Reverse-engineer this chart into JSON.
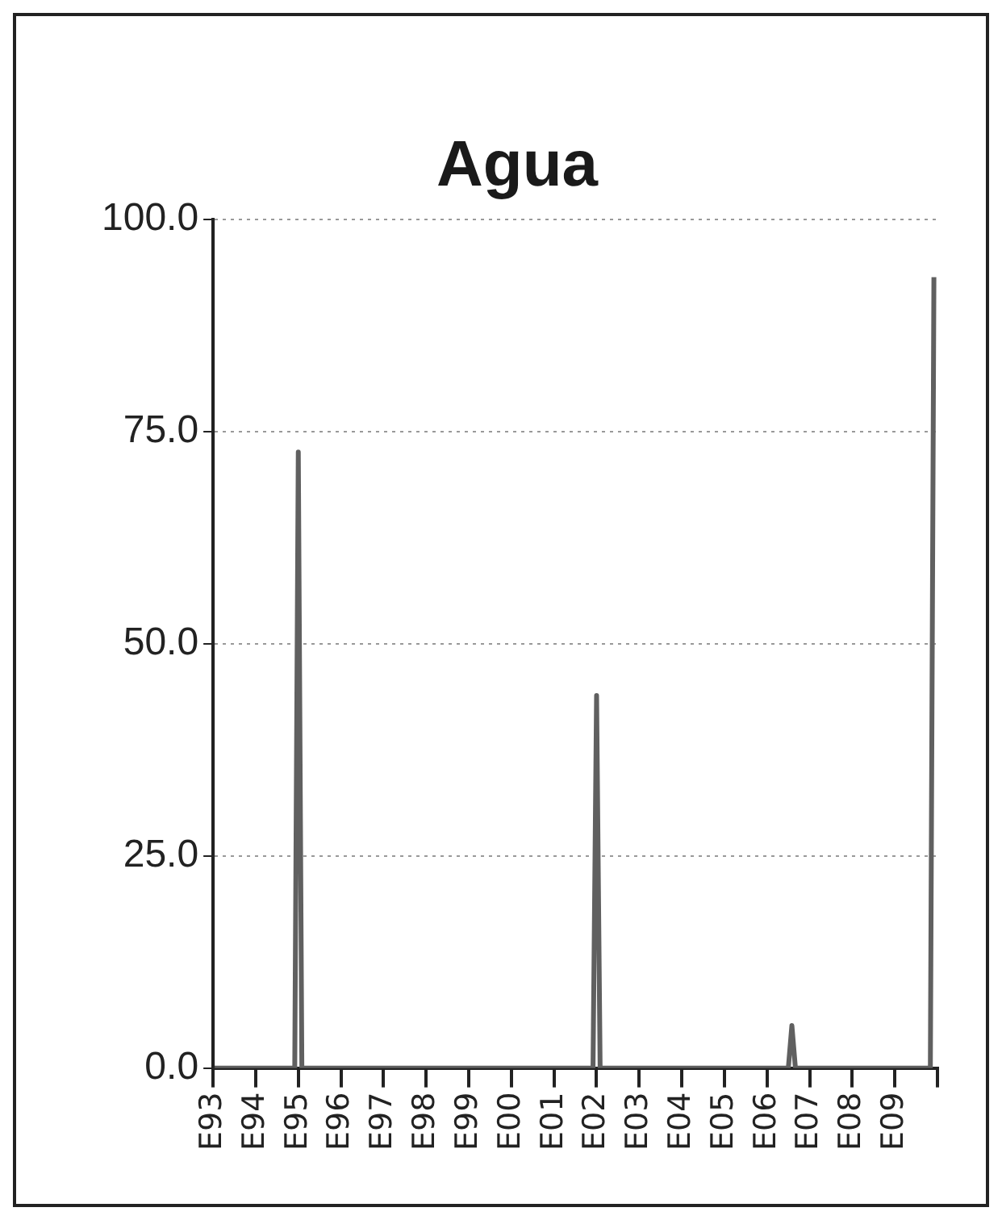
{
  "chart_data": {
    "type": "line",
    "title": "Agua",
    "x": [
      "1993-01",
      "1994-12",
      "1995-01",
      "1995-02",
      "2001-12",
      "2002-01",
      "2002-02",
      "2006-07",
      "2006-08",
      "2006-09",
      "2009-11",
      "2009-12"
    ],
    "series": [
      {
        "color": "#606060",
        "values": [
          0,
          0,
          72.6,
          0,
          0,
          43.9,
          0,
          0,
          5.0,
          0,
          0,
          93.2
        ]
      }
    ],
    "xlim": [
      "1993-01",
      "2010-01"
    ],
    "xticks": [
      {
        "value": "1993-01",
        "label": "E93"
      },
      {
        "value": "1994-01",
        "label": "E94"
      },
      {
        "value": "1995-01",
        "label": "E95"
      },
      {
        "value": "1996-01",
        "label": "E96"
      },
      {
        "value": "1997-01",
        "label": "E97"
      },
      {
        "value": "1998-01",
        "label": "E98"
      },
      {
        "value": "1999-01",
        "label": "E99"
      },
      {
        "value": "2000-01",
        "label": "E00"
      },
      {
        "value": "2001-01",
        "label": "E01"
      },
      {
        "value": "2002-01",
        "label": "E02"
      },
      {
        "value": "2003-01",
        "label": "E03"
      },
      {
        "value": "2004-01",
        "label": "E04"
      },
      {
        "value": "2005-01",
        "label": "E05"
      },
      {
        "value": "2006-01",
        "label": "E06"
      },
      {
        "value": "2007-01",
        "label": "E07"
      },
      {
        "value": "2008-01",
        "label": "E08"
      },
      {
        "value": "2009-01",
        "label": "E09"
      },
      {
        "value": "2010-01",
        "label": null
      }
    ],
    "ylim": [
      0,
      100
    ],
    "yticks": [
      {
        "value": 0,
        "label": "0.0"
      },
      {
        "value": 25,
        "label": "25.0"
      },
      {
        "value": 50,
        "label": "50.0"
      },
      {
        "value": 75,
        "label": "75.0"
      },
      {
        "value": 100,
        "label": "100.0"
      }
    ],
    "grid": "y",
    "legend": false,
    "marker": "none",
    "line_style": "solid"
  }
}
